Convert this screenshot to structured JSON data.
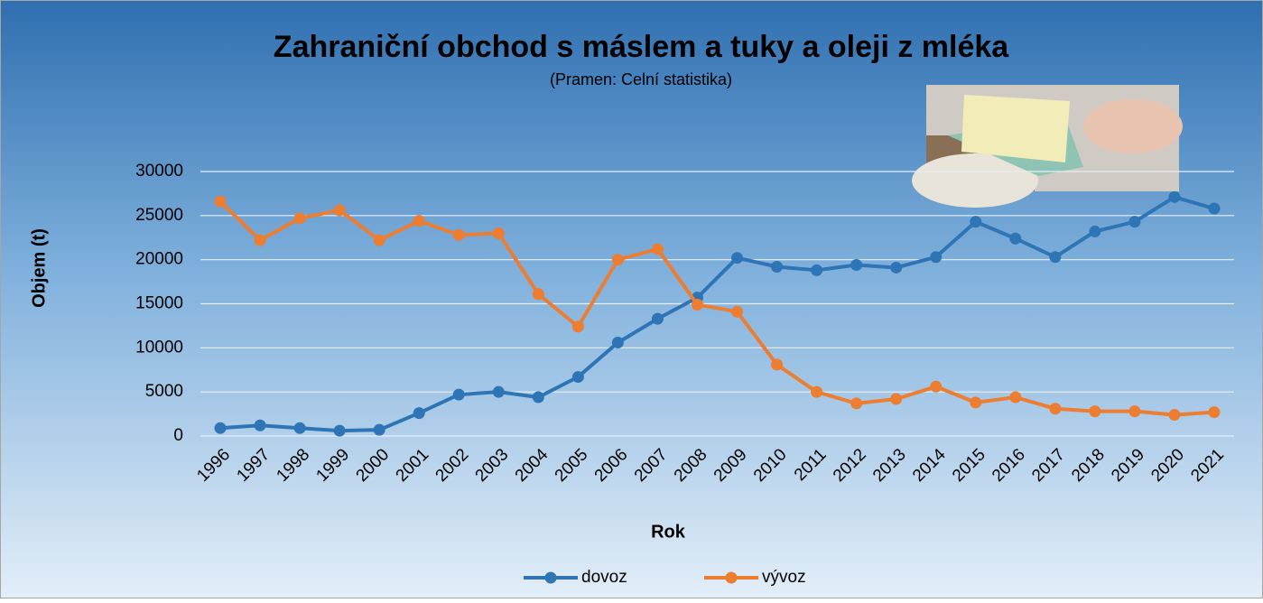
{
  "chart_data": {
    "type": "line",
    "title": "Zahraniční obchod s máslem a tuky a oleji z mléka",
    "subtitle": "(Pramen: Celní statistika)",
    "x_label": "Rok",
    "y_label": "Objem (t)",
    "categories": [
      "1996",
      "1997",
      "1998",
      "1999",
      "2000",
      "2001",
      "2002",
      "2003",
      "2004",
      "2005",
      "2006",
      "2007",
      "2008",
      "2009",
      "2010",
      "2011",
      "2012",
      "2013",
      "2014",
      "2015",
      "2016",
      "2017",
      "2018",
      "2019",
      "2020",
      "2021"
    ],
    "series": [
      {
        "name": "dovoz",
        "color": "#2e75b6",
        "values": [
          900,
          1200,
          900,
          600,
          700,
          2600,
          4700,
          5000,
          4400,
          6700,
          10600,
          13300,
          15700,
          20200,
          19200,
          18800,
          19400,
          19100,
          20300,
          24300,
          22400,
          20300,
          23200,
          24300,
          27100,
          25800
        ]
      },
      {
        "name": "vývoz",
        "color": "#ed7d31",
        "values": [
          26600,
          22200,
          24700,
          25600,
          22200,
          24400,
          22800,
          23000,
          16100,
          12400,
          20000,
          21200,
          14900,
          14100,
          8100,
          5000,
          3700,
          4200,
          5600,
          3800,
          4400,
          3100,
          2800,
          2800,
          2400,
          2700
        ]
      }
    ],
    "ylim": [
      0,
      30000
    ],
    "yticks": [
      0,
      5000,
      10000,
      15000,
      20000,
      25000,
      30000
    ],
    "grid": true,
    "legend": "bottom"
  }
}
